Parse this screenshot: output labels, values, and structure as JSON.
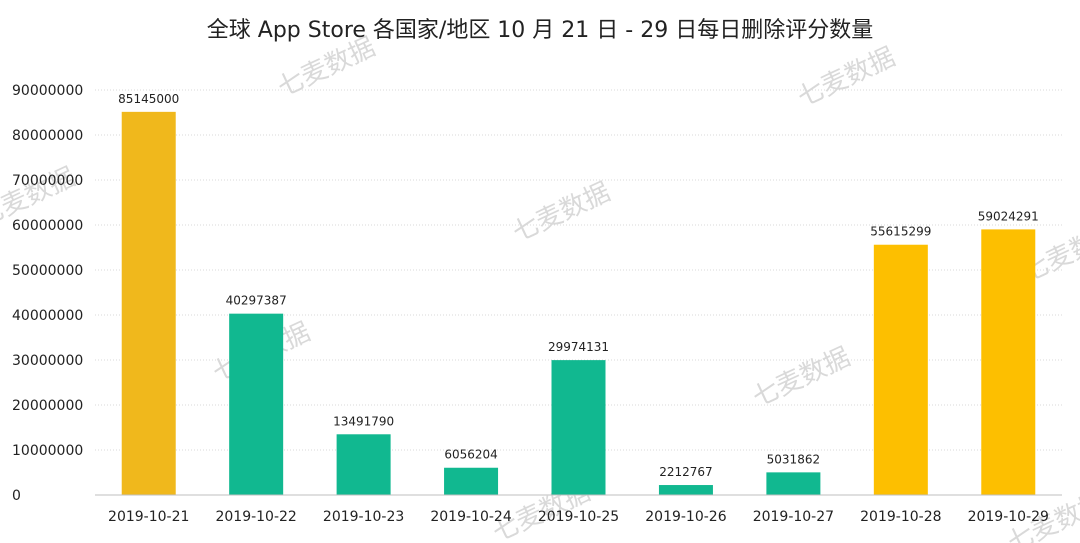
{
  "chart_data": {
    "type": "bar",
    "title": "全球 App Store 各国家/地区 10 月 21 日 - 29 日每日删除评分数量",
    "xlabel": "",
    "ylabel": "",
    "categories": [
      "2019-10-21",
      "2019-10-22",
      "2019-10-23",
      "2019-10-24",
      "2019-10-25",
      "2019-10-26",
      "2019-10-27",
      "2019-10-28",
      "2019-10-29"
    ],
    "values": [
      85145000,
      40297387,
      13491790,
      6056204,
      29974131,
      2212767,
      5031862,
      55615299,
      59024291
    ],
    "data_labels": [
      "85145000",
      "40297387",
      "13491790",
      "6056204",
      "29974131",
      "2212767",
      "5031862",
      "55615299",
      "59024291"
    ],
    "bar_colors": [
      "#f0b81c",
      "#11b890",
      "#11b890",
      "#11b890",
      "#11b890",
      "#11b890",
      "#11b890",
      "#fdbf00",
      "#fdbf00"
    ],
    "ylim": [
      0,
      90000000
    ],
    "yticks": [
      0,
      10000000,
      20000000,
      30000000,
      40000000,
      50000000,
      60000000,
      70000000,
      80000000,
      90000000
    ],
    "ytick_labels": [
      "0",
      "10000000",
      "20000000",
      "30000000",
      "40000000",
      "50000000",
      "60000000",
      "70000000",
      "80000000",
      "90000000"
    ],
    "grid": true,
    "grid_color": "#d9d9d9",
    "legend": "none"
  },
  "watermark": {
    "text": "七麦数据"
  }
}
